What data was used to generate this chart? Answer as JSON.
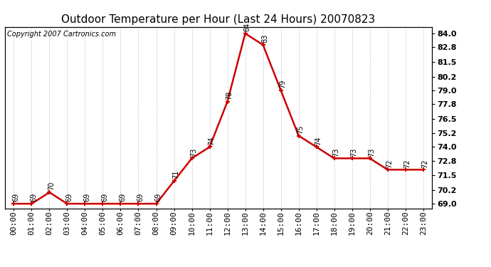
{
  "title": "Outdoor Temperature per Hour (Last 24 Hours) 20070823",
  "copyright_text": "Copyright 2007 Cartronics.com",
  "hours": [
    "00:00",
    "01:00",
    "02:00",
    "03:00",
    "04:00",
    "05:00",
    "06:00",
    "07:00",
    "08:00",
    "09:00",
    "10:00",
    "11:00",
    "12:00",
    "13:00",
    "14:00",
    "15:00",
    "16:00",
    "17:00",
    "18:00",
    "19:00",
    "20:00",
    "21:00",
    "22:00",
    "23:00"
  ],
  "temps": [
    69,
    69,
    70,
    69,
    69,
    69,
    69,
    69,
    69,
    71,
    73,
    74,
    78,
    84,
    83,
    79,
    75,
    74,
    73,
    73,
    73,
    72,
    72,
    72
  ],
  "line_color": "#cc0000",
  "marker_color": "#cc0000",
  "bg_color": "#ffffff",
  "grid_color": "#c8c8c8",
  "ylim_min": 68.6,
  "ylim_max": 84.6,
  "yticks": [
    69.0,
    70.2,
    71.5,
    72.8,
    74.0,
    75.2,
    76.5,
    77.8,
    79.0,
    80.2,
    81.5,
    82.8,
    84.0
  ],
  "title_fontsize": 11,
  "label_fontsize": 8,
  "annotation_fontsize": 7,
  "copyright_fontsize": 7
}
